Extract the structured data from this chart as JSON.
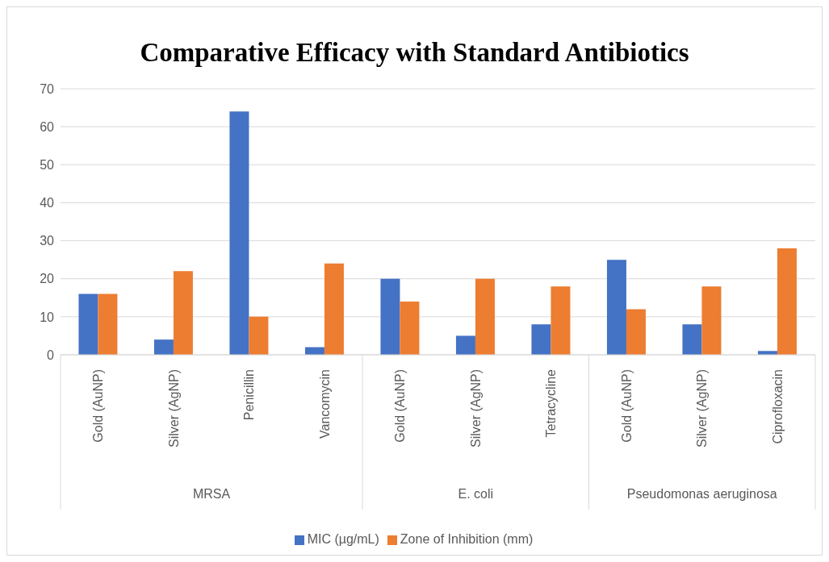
{
  "chart_data": {
    "type": "bar",
    "title": "Comparative Efficacy with Standard Antibiotics",
    "categories": [
      "Gold (AuNP)",
      "Silver (AgNP)",
      "Penicillin",
      "Vancomycin",
      "Gold (AuNP)",
      "Silver (AgNP)",
      "Tetracycline",
      "Gold (AuNP)",
      "Silver (AgNP)",
      "Ciprofloxacin"
    ],
    "series": [
      {
        "name": "MIC (µg/mL)",
        "color": "#4472c4",
        "values": [
          16,
          4,
          64,
          2,
          20,
          5,
          8,
          25,
          8,
          1
        ]
      },
      {
        "name": "Zone of Inhibition (mm)",
        "color": "#ed7d31",
        "values": [
          16,
          22,
          10,
          24,
          14,
          20,
          18,
          12,
          18,
          28
        ]
      }
    ],
    "annotations": [
      "MRSA",
      "E. coli",
      "Pseudomonas aeruginosa"
    ],
    "ylim": [
      0,
      70
    ],
    "yticks": [
      0,
      10,
      20,
      30,
      40,
      50,
      60,
      70
    ],
    "grid": "y",
    "legend": "bottom"
  }
}
